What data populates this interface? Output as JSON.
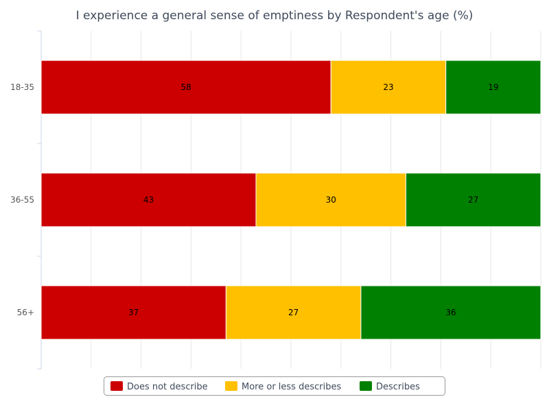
{
  "chart_data": {
    "type": "bar",
    "orientation": "horizontal",
    "stacked": true,
    "title": "I experience a general sense of emptiness by Respondent's age (%)",
    "categories": [
      "18-35",
      "36-55",
      "56+"
    ],
    "series": [
      {
        "name": "Does not describe",
        "color": "#cc0000",
        "values": [
          58,
          43,
          37
        ]
      },
      {
        "name": "More or less describes",
        "color": "#ffc000",
        "values": [
          23,
          30,
          27
        ]
      },
      {
        "name": "Describes",
        "color": "#008000",
        "values": [
          19,
          27,
          36
        ]
      }
    ],
    "xlim": [
      0,
      100
    ],
    "grid": true,
    "legend": "bottom-center",
    "xlabel": "",
    "ylabel": ""
  }
}
